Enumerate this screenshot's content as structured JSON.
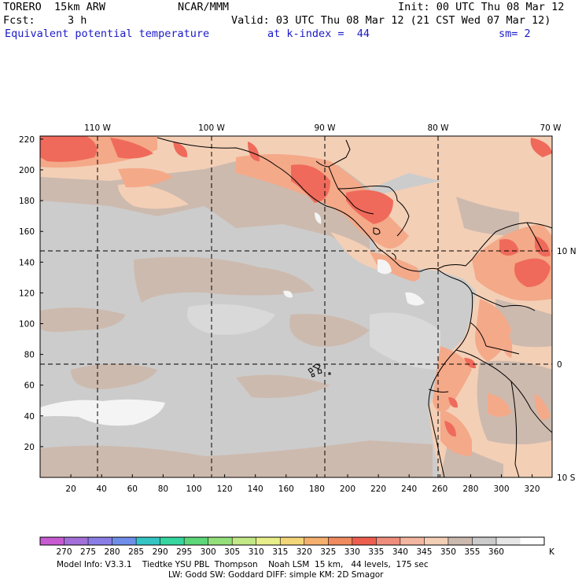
{
  "header": {
    "model": "TORERO  15km ARW",
    "center": "NCAR/MMM",
    "init": "Init: 00 UTC Thu 08 Mar 12",
    "fcst_label": "Fcst:",
    "fcst_value": "3 h",
    "valid": "Valid: 03 UTC Thu 08 Mar 12 (21 CST Wed 07 Mar 12)",
    "field": "Equivalent potential temperature",
    "level": "at k-index =  44",
    "smooth": "sm= 2"
  },
  "map": {
    "grid_x_ticks": [
      "20",
      "40",
      "60",
      "80",
      "100",
      "120",
      "140",
      "160",
      "180",
      "200",
      "220",
      "240",
      "260",
      "280",
      "300",
      "320"
    ],
    "grid_y_ticks": [
      "20",
      "40",
      "60",
      "80",
      "100",
      "120",
      "140",
      "160",
      "180",
      "200",
      "220"
    ],
    "lon_labels": [
      "110 W",
      "100 W",
      "90 W",
      "80 W",
      "70 W"
    ],
    "lat_labels": [
      "10 N",
      "0",
      "10 S"
    ],
    "colors": {
      "ocean": "#cccccc",
      "ocean_light": "#d9d9d9",
      "tan": "#cdbaae",
      "land_light": "#f3cfb6",
      "salmon": "#f4a989",
      "red": "#ef6a5a",
      "ice": "#f4f4f4"
    }
  },
  "colorbar": {
    "unit": "K",
    "labels": [
      "270",
      "275",
      "280",
      "285",
      "290",
      "295",
      "300",
      "305",
      "310",
      "315",
      "320",
      "325",
      "330",
      "335",
      "340",
      "345",
      "350",
      "355",
      "360"
    ],
    "colors": [
      "#c85bd2",
      "#a36fd8",
      "#8a7ee6",
      "#6f8ee9",
      "#34c4c4",
      "#35d69f",
      "#5ed67a",
      "#93e07b",
      "#c3e887",
      "#e8ef8a",
      "#f4d67a",
      "#f4b06d",
      "#f08a5f",
      "#ee5e4e",
      "#f08e7e",
      "#f3b6a0",
      "#f3cfb6",
      "#cdbaae",
      "#cccccc",
      "#e6e6e6",
      "#ffffff"
    ]
  },
  "footer": {
    "line1": "Model Info: V3.3.1    Tiedtke YSU PBL  Thompson    Noah LSM  15 km,   44 levels,  175 sec",
    "line2": "LW: Godd SW: Goddard DIFF: simple KM: 2D Smagor"
  }
}
